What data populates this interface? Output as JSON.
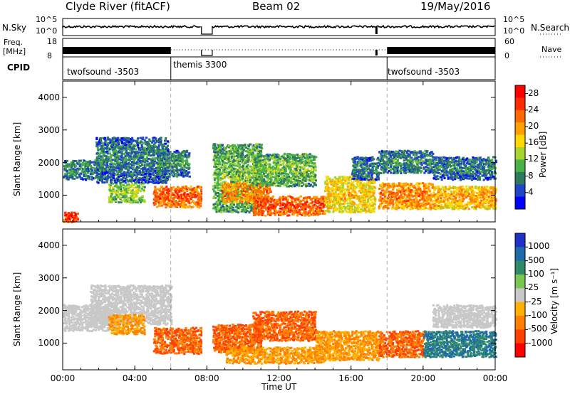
{
  "header": {
    "title": "Clyde River (fitACF)",
    "beam": "Beam 02",
    "date": "19/May/2016"
  },
  "strip_labels": {
    "nsky": "N.Sky",
    "nsky_ticks": [
      "10^5",
      "10^0"
    ],
    "nsearch": "N.Search",
    "nsearch_ticks": [
      "10^5",
      "10^0"
    ],
    "freq_line1": "Freq.",
    "freq_line2": "[MHz]",
    "freq_ticks": [
      "18",
      "8"
    ],
    "nave": "Nave",
    "nave_ticks": [
      "60",
      "0"
    ],
    "cpid": "CPID"
  },
  "cpid_segments": [
    {
      "label": "twofsound -3503",
      "start_h": 0.0,
      "end_h": 6.0
    },
    {
      "label": "themis 3300",
      "start_h": 6.0,
      "end_h": 18.0
    },
    {
      "label": "twofsound -3503",
      "start_h": 18.0,
      "end_h": 24.0
    }
  ],
  "chart_data": [
    {
      "type": "heatmap",
      "quantity": "Power",
      "ylabel": "Slant Range [km]",
      "xlabel": "Time UT",
      "xlim": [
        0,
        24
      ],
      "ylim": [
        180,
        4500
      ],
      "xticks": [
        "00:00",
        "04:00",
        "08:00",
        "12:00",
        "16:00",
        "20:00",
        "00:00"
      ],
      "yticks": [
        1000,
        2000,
        3000,
        4000
      ],
      "colorbar": {
        "label": "Power [dB]",
        "ticks": [
          4,
          8,
          12,
          16,
          20,
          24,
          28
        ],
        "range": [
          0,
          30
        ],
        "colors": [
          "#0000ff",
          "#1f46c8",
          "#2e7a5c",
          "#49b148",
          "#a8d430",
          "#ffd800",
          "#ffa000",
          "#ff6a00",
          "#ff2a00",
          "#ff0000"
        ]
      },
      "data_gap_ut": [
        7.75,
        8.25
      ],
      "scatter_regions": [
        {
          "t0": 0.0,
          "t1": 2.2,
          "r0": 1500,
          "r1": 2100,
          "power": 9
        },
        {
          "t0": 1.8,
          "t1": 5.8,
          "r0": 1400,
          "r1": 2800,
          "power": 8
        },
        {
          "t0": 2.5,
          "t1": 4.5,
          "r0": 800,
          "r1": 1400,
          "power": 14
        },
        {
          "t0": 5.0,
          "t1": 7.7,
          "r0": 650,
          "r1": 1300,
          "power": 24
        },
        {
          "t0": 5.2,
          "t1": 7.0,
          "r0": 1600,
          "r1": 2400,
          "power": 9
        },
        {
          "t0": 0.0,
          "t1": 0.8,
          "r0": 200,
          "r1": 500,
          "power": 26
        },
        {
          "t0": 8.3,
          "t1": 11.0,
          "r0": 500,
          "r1": 2600,
          "power": 12
        },
        {
          "t0": 8.8,
          "t1": 11.5,
          "r0": 800,
          "r1": 1400,
          "power": 22
        },
        {
          "t0": 10.5,
          "t1": 14.5,
          "r0": 400,
          "r1": 1000,
          "power": 25
        },
        {
          "t0": 10.5,
          "t1": 14.0,
          "r0": 1300,
          "r1": 2300,
          "power": 12
        },
        {
          "t0": 14.5,
          "t1": 17.3,
          "r0": 500,
          "r1": 1600,
          "power": 18
        },
        {
          "t0": 16.0,
          "t1": 17.5,
          "r0": 1500,
          "r1": 2200,
          "power": 8
        },
        {
          "t0": 17.5,
          "t1": 20.5,
          "r0": 600,
          "r1": 1400,
          "power": 22
        },
        {
          "t0": 17.5,
          "t1": 20.5,
          "r0": 1700,
          "r1": 2400,
          "power": 9
        },
        {
          "t0": 20.5,
          "t1": 24.0,
          "r0": 600,
          "r1": 1300,
          "power": 20
        },
        {
          "t0": 20.5,
          "t1": 24.0,
          "r0": 1500,
          "r1": 2200,
          "power": 8
        }
      ]
    },
    {
      "type": "heatmap",
      "quantity": "Velocity",
      "ylabel": "Slant Range [km]",
      "xlabel": "Time UT",
      "xlim": [
        0,
        24
      ],
      "ylim": [
        180,
        4500
      ],
      "xticks": [
        "00:00",
        "04:00",
        "08:00",
        "12:00",
        "16:00",
        "20:00",
        "00:00"
      ],
      "yticks": [
        1000,
        2000,
        3000,
        4000
      ],
      "colorbar": {
        "label": "Velocity [m s⁻¹]",
        "ticks": [
          1000,
          500,
          100,
          25,
          -25,
          -100,
          -500,
          -1000
        ],
        "colors": [
          "#2030c8",
          "#1f6aa8",
          "#2f8a6a",
          "#78c850",
          "#c8c8c8",
          "#ffb000",
          "#ff8000",
          "#ff4000",
          "#ff0000"
        ]
      },
      "data_gap_ut": [
        7.75,
        8.25
      ],
      "scatter_regions": [
        {
          "t0": 0.0,
          "t1": 3.0,
          "r0": 1400,
          "r1": 2200,
          "velocity": 0
        },
        {
          "t0": 1.5,
          "t1": 6.0,
          "r0": 1600,
          "r1": 2800,
          "velocity": 0
        },
        {
          "t0": 2.5,
          "t1": 4.5,
          "r0": 1300,
          "r1": 1900,
          "velocity": -100
        },
        {
          "t0": 5.0,
          "t1": 7.7,
          "r0": 700,
          "r1": 1500,
          "velocity": -500
        },
        {
          "t0": 8.3,
          "t1": 11.0,
          "r0": 700,
          "r1": 1600,
          "velocity": -500
        },
        {
          "t0": 10.5,
          "t1": 14.0,
          "r0": 1100,
          "r1": 2000,
          "velocity": -500
        },
        {
          "t0": 9.0,
          "t1": 14.5,
          "r0": 400,
          "r1": 900,
          "velocity": -100
        },
        {
          "t0": 14.0,
          "t1": 17.5,
          "r0": 500,
          "r1": 1400,
          "velocity": -100
        },
        {
          "t0": 17.5,
          "t1": 20.0,
          "r0": 600,
          "r1": 1400,
          "velocity": -500
        },
        {
          "t0": 20.0,
          "t1": 24.0,
          "r0": 600,
          "r1": 1400,
          "velocity": 500
        },
        {
          "t0": 20.5,
          "t1": 24.0,
          "r0": 1500,
          "r1": 2200,
          "velocity": 0
        }
      ]
    }
  ]
}
